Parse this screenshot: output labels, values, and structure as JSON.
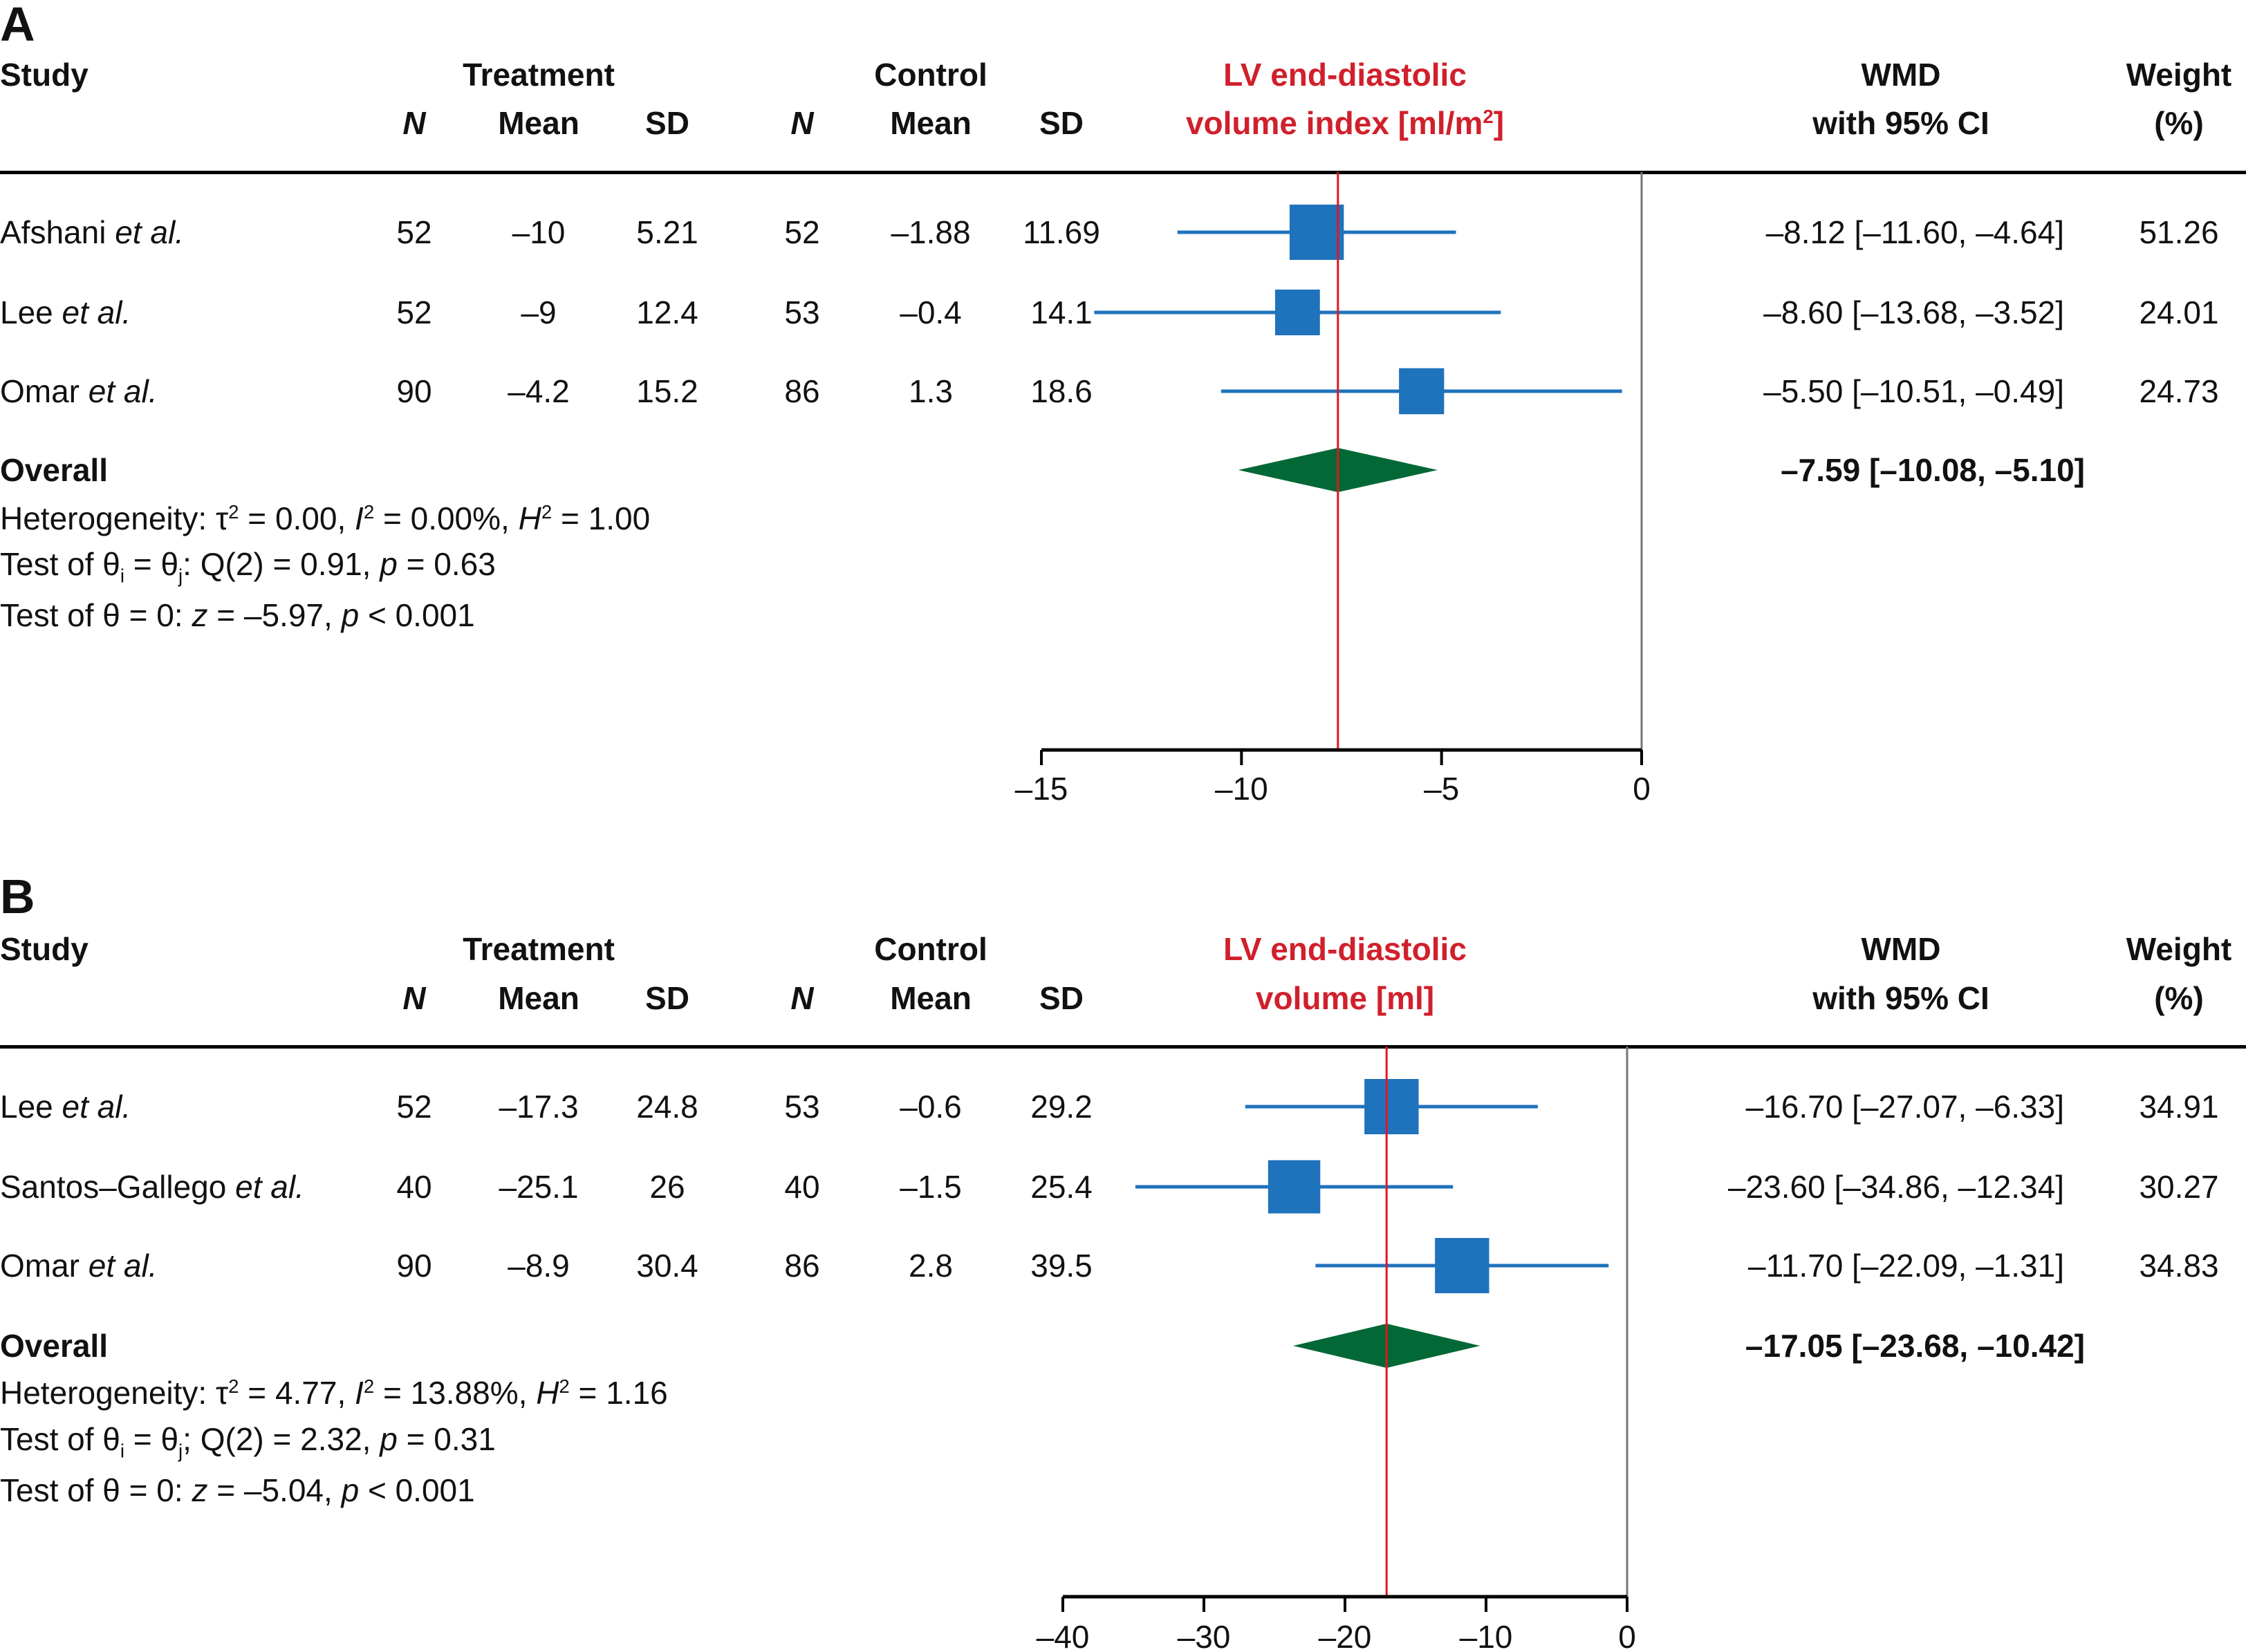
{
  "chart_data": [
    {
      "type": "forest",
      "panel": "A",
      "title": "LV end-diastolic volume index [ml/m²]",
      "title_line1": "LV end-diastolic",
      "title_line2_pre": "volume index [ml/m",
      "title_line2_sup": "2",
      "title_line2_post": "]",
      "xlim": [
        -15,
        0
      ],
      "xticks": [
        -15,
        -10,
        -5,
        0
      ],
      "xtick_labels": [
        "–15",
        "–10",
        "–5",
        "0"
      ],
      "reference_line": 0,
      "pooled_line": -7.59,
      "headers": {
        "study": "Study",
        "treatment": "Treatment",
        "control": "Control",
        "n": "N",
        "mean": "Mean",
        "sd": "SD",
        "wmd1": "WMD",
        "wmd2": "with 95% CI",
        "weight1": "Weight",
        "weight2": "(%)"
      },
      "studies": [
        {
          "name": "Afshani",
          "suffix": "et al.",
          "t_n": "52",
          "t_mean": "–10",
          "t_sd": "5.21",
          "c_n": "52",
          "c_mean": "–1.88",
          "c_sd": "11.69",
          "wmd": -8.12,
          "lo": -11.6,
          "hi": -4.64,
          "ci_text": "–8.12 [–11.60, –4.64]",
          "weight": 51.26,
          "weight_text": "51.26"
        },
        {
          "name": "Lee",
          "suffix": "et al.",
          "t_n": "52",
          "t_mean": "–9",
          "t_sd": "12.4",
          "c_n": "53",
          "c_mean": "–0.4",
          "c_sd": "14.1",
          "wmd": -8.6,
          "lo": -13.68,
          "hi": -3.52,
          "ci_text": "–8.60 [–13.68, –3.52]",
          "weight": 24.01,
          "weight_text": "24.01"
        },
        {
          "name": "Omar",
          "suffix": "et al.",
          "t_n": "90",
          "t_mean": "–4.2",
          "t_sd": "15.2",
          "c_n": "86",
          "c_mean": "1.3",
          "c_sd": "18.6",
          "wmd": -5.5,
          "lo": -10.51,
          "hi": -0.49,
          "ci_text": "–5.50 [–10.51, –0.49]",
          "weight": 24.73,
          "weight_text": "24.73"
        }
      ],
      "overall": {
        "label": "Overall",
        "wmd": -7.59,
        "lo": -10.08,
        "hi": -5.1,
        "ci_text": "–7.59 [–10.08, –5.10]"
      },
      "stats": {
        "heterogeneity": {
          "prefix": "Heterogeneity: τ",
          "tau2": "0.00",
          "i2": "0.00%",
          "h2": "1.00"
        },
        "test_q": {
          "prefix": "Test of θ",
          "sep": ": Q(2) = 0.91, ",
          "p": "0.63"
        },
        "test_z": {
          "prefix": "Test of θ = 0: ",
          "z": "–5.97",
          "p": "< 0.001"
        }
      }
    },
    {
      "type": "forest",
      "panel": "B",
      "title": "LV end-diastolic volume [ml]",
      "title_line1": "LV end-diastolic",
      "title_line2_pre": "volume [ml]",
      "title_line2_sup": "",
      "title_line2_post": "",
      "xlim": [
        -40,
        0
      ],
      "xticks": [
        -40,
        -30,
        -20,
        -10,
        0
      ],
      "xtick_labels": [
        "–40",
        "–30",
        "–20",
        "–10",
        "0"
      ],
      "reference_line": 0,
      "pooled_line": -17.05,
      "headers": {
        "study": "Study",
        "treatment": "Treatment",
        "control": "Control",
        "n": "N",
        "mean": "Mean",
        "sd": "SD",
        "wmd1": "WMD",
        "wmd2": "with 95% CI",
        "weight1": "Weight",
        "weight2": "(%)"
      },
      "studies": [
        {
          "name": "Lee",
          "suffix": "et al.",
          "t_n": "52",
          "t_mean": "–17.3",
          "t_sd": "24.8",
          "c_n": "53",
          "c_mean": "–0.6",
          "c_sd": "29.2",
          "wmd": -16.7,
          "lo": -27.07,
          "hi": -6.33,
          "ci_text": "–16.70 [–27.07, –6.33]",
          "weight": 34.91,
          "weight_text": "34.91"
        },
        {
          "name": "Santos–Gallego",
          "suffix": "et al.",
          "t_n": "40",
          "t_mean": "–25.1",
          "t_sd": "26",
          "c_n": "40",
          "c_mean": "–1.5",
          "c_sd": "25.4",
          "wmd": -23.6,
          "lo": -34.86,
          "hi": -12.34,
          "ci_text": "–23.60 [–34.86, –12.34]",
          "weight": 30.27,
          "weight_text": "30.27"
        },
        {
          "name": "Omar",
          "suffix": "et al.",
          "t_n": "90",
          "t_mean": "–8.9",
          "t_sd": "30.4",
          "c_n": "86",
          "c_mean": "2.8",
          "c_sd": "39.5",
          "wmd": -11.7,
          "lo": -22.09,
          "hi": -1.31,
          "ci_text": "–11.70 [–22.09, –1.31]",
          "weight": 34.83,
          "weight_text": "34.83"
        }
      ],
      "overall": {
        "label": "Overall",
        "wmd": -17.05,
        "lo": -23.68,
        "hi": -10.42,
        "ci_text": "–17.05 [–23.68, –10.42]"
      },
      "stats": {
        "heterogeneity": {
          "prefix": "Heterogeneity: τ",
          "tau2": "4.77",
          "i2": "13.88%",
          "h2": "1.16"
        },
        "test_q": {
          "prefix": "Test of θ",
          "sep": "; Q(2) = 2.32, ",
          "p": "0.31"
        },
        "test_z": {
          "prefix": "Test of θ = 0: ",
          "z": "–5.04",
          "p": "< 0.001"
        }
      }
    }
  ],
  "colors": {
    "study_marker": "#1f72bc",
    "overall_diamond": "#026836",
    "pooled_line": "#e3161f",
    "title_text": "#d0202c",
    "reference_line": "#777777"
  }
}
